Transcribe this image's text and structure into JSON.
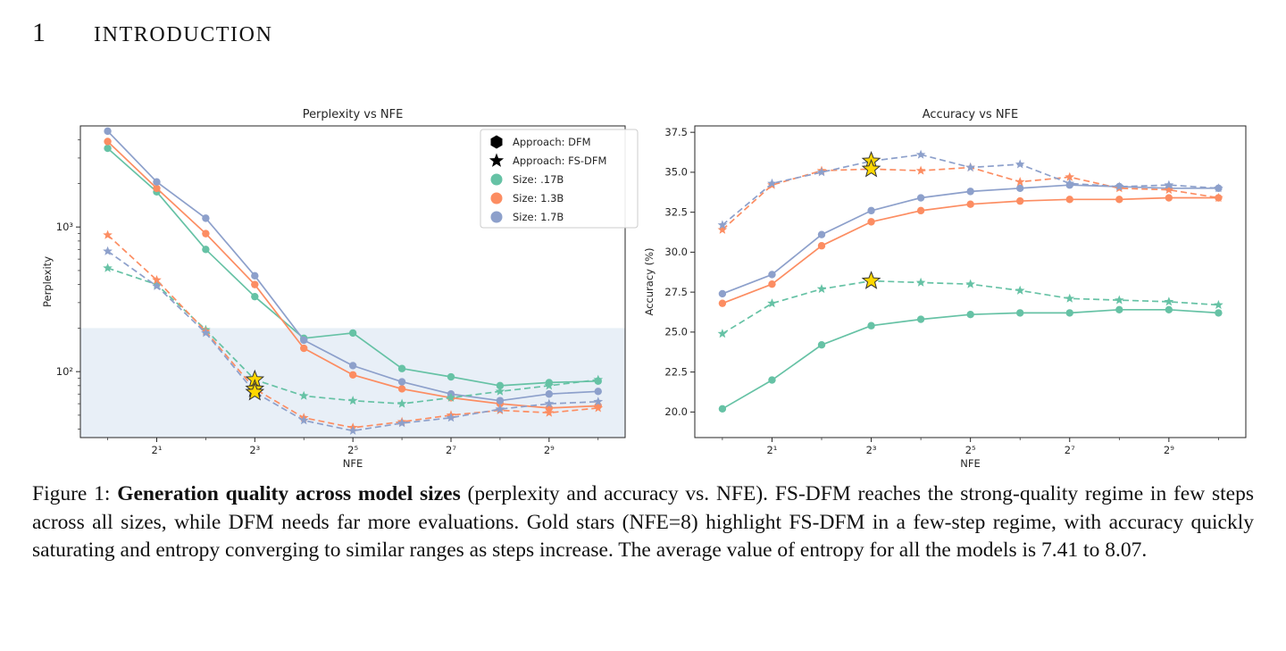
{
  "heading": {
    "number": "1",
    "title": "INTRODUCTION"
  },
  "caption": {
    "label": "Figure 1: ",
    "bold": "Generation quality across model sizes",
    "rest": " (perplexity and accuracy vs. NFE). FS-DFM reaches the strong-quality regime in few steps across all sizes, while DFM needs far more evaluations. Gold stars (NFE=8) highlight FS-DFM in a few-step regime, with accuracy quickly saturating and entropy converging to similar ranges as steps increase. The average value of entropy for all the models is 7.41 to 8.07."
  },
  "colors": {
    "size_017B": "#66c2a5",
    "size_13B": "#fc8d62",
    "size_17B": "#8da0cb",
    "gold_star": "#ffd700",
    "shaded_region": "#dce6f2",
    "ink": "#262626"
  },
  "chart_data": [
    {
      "type": "line",
      "title": "Perplexity vs NFE",
      "xlabel": "NFE",
      "ylabel": "Perplexity",
      "x_scale": "log2",
      "y_scale": "log10",
      "xlim": [
        0.68,
        1500
      ],
      "ylim": [
        35,
        5000
      ],
      "grid": false,
      "x_tick_values": [
        2,
        8,
        32,
        128,
        512
      ],
      "x_tick_labels": [
        "2¹",
        "2³",
        "2⁵",
        "2⁷",
        "2⁹"
      ],
      "x_minor_values": [
        1,
        4,
        16,
        64,
        256,
        1024
      ],
      "y_tick_values": [
        100,
        1000
      ],
      "y_tick_labels": [
        "10²",
        "10³"
      ],
      "x": [
        1,
        2,
        4,
        8,
        16,
        32,
        64,
        128,
        256,
        512,
        1024
      ],
      "series": [
        {
          "name": "DFM .17B",
          "approach": "DFM",
          "size": ".17B",
          "color": "#66c2a5",
          "style": "solid",
          "marker": "circle",
          "values": [
            3500,
            1750,
            700,
            330,
            170,
            185,
            105,
            92,
            80,
            84,
            86
          ]
        },
        {
          "name": "DFM 1.3B",
          "approach": "DFM",
          "size": "1.3B",
          "color": "#fc8d62",
          "style": "solid",
          "marker": "circle",
          "values": [
            3900,
            1850,
            900,
            400,
            145,
            95,
            76,
            66,
            60,
            56,
            58
          ]
        },
        {
          "name": "DFM 1.7B",
          "approach": "DFM",
          "size": "1.7B",
          "color": "#8da0cb",
          "style": "solid",
          "marker": "circle",
          "values": [
            4600,
            2050,
            1150,
            460,
            165,
            110,
            85,
            70,
            63,
            70,
            73
          ]
        },
        {
          "name": "FS-DFM .17B",
          "approach": "FS-DFM",
          "size": ".17B",
          "color": "#66c2a5",
          "style": "dashed",
          "marker": "star",
          "values": [
            520,
            400,
            195,
            88,
            68,
            63,
            60,
            66,
            73,
            80,
            88
          ]
        },
        {
          "name": "FS-DFM 1.3B",
          "approach": "FS-DFM",
          "size": "1.3B",
          "color": "#fc8d62",
          "style": "dashed",
          "marker": "star",
          "values": [
            880,
            430,
            190,
            76,
            48,
            41,
            45,
            50,
            54,
            52,
            56
          ]
        },
        {
          "name": "FS-DFM 1.7B",
          "approach": "FS-DFM",
          "size": "1.7B",
          "color": "#8da0cb",
          "style": "dashed",
          "marker": "star",
          "values": [
            680,
            390,
            185,
            72,
            46,
            39,
            44,
            48,
            55,
            60,
            62
          ]
        }
      ],
      "shaded_region": {
        "y_max": 200,
        "color": "#dce6f2"
      },
      "gold_stars": [
        {
          "x": 8,
          "y": 88
        },
        {
          "x": 8,
          "y": 76
        },
        {
          "x": 8,
          "y": 72
        }
      ],
      "legend": {
        "position": "upper right",
        "items": [
          {
            "marker": "hexagon",
            "color": "#000000",
            "label": "Approach: DFM"
          },
          {
            "marker": "star",
            "color": "#000000",
            "label": "Approach: FS-DFM"
          },
          {
            "marker": "circle",
            "color": "#66c2a5",
            "label": "Size: .17B"
          },
          {
            "marker": "circle",
            "color": "#fc8d62",
            "label": "Size: 1.3B"
          },
          {
            "marker": "circle",
            "color": "#8da0cb",
            "label": "Size: 1.7B"
          }
        ]
      }
    },
    {
      "type": "line",
      "title": "Accuracy vs NFE",
      "xlabel": "NFE",
      "ylabel": "Accuracy (%)",
      "x_scale": "log2",
      "y_scale": "linear",
      "xlim": [
        0.68,
        1500
      ],
      "ylim": [
        18.4,
        37.9
      ],
      "grid": false,
      "x_tick_values": [
        2,
        8,
        32,
        128,
        512
      ],
      "x_tick_labels": [
        "2¹",
        "2³",
        "2⁵",
        "2⁷",
        "2⁹"
      ],
      "x_minor_values": [
        1,
        4,
        16,
        64,
        256,
        1024
      ],
      "y_tick_values": [
        20.0,
        22.5,
        25.0,
        27.5,
        30.0,
        32.5,
        35.0,
        37.5
      ],
      "y_tick_labels": [
        "20.0",
        "22.5",
        "25.0",
        "27.5",
        "30.0",
        "32.5",
        "35.0",
        "37.5"
      ],
      "x": [
        1,
        2,
        4,
        8,
        16,
        32,
        64,
        128,
        256,
        512,
        1024
      ],
      "series": [
        {
          "name": "DFM .17B",
          "approach": "DFM",
          "size": ".17B",
          "color": "#66c2a5",
          "style": "solid",
          "marker": "circle",
          "values": [
            20.2,
            22.0,
            24.2,
            25.4,
            25.8,
            26.1,
            26.2,
            26.2,
            26.4,
            26.4,
            26.2
          ]
        },
        {
          "name": "DFM 1.3B",
          "approach": "DFM",
          "size": "1.3B",
          "color": "#fc8d62",
          "style": "solid",
          "marker": "circle",
          "values": [
            26.8,
            28.0,
            30.4,
            31.9,
            32.6,
            33.0,
            33.2,
            33.3,
            33.3,
            33.4,
            33.4
          ]
        },
        {
          "name": "DFM 1.7B",
          "approach": "DFM",
          "size": "1.7B",
          "color": "#8da0cb",
          "style": "solid",
          "marker": "circle",
          "values": [
            27.4,
            28.6,
            31.1,
            32.6,
            33.4,
            33.8,
            34.0,
            34.2,
            34.1,
            34.0,
            34.0
          ]
        },
        {
          "name": "FS-DFM .17B",
          "approach": "FS-DFM",
          "size": ".17B",
          "color": "#66c2a5",
          "style": "dashed",
          "marker": "star",
          "values": [
            24.9,
            26.8,
            27.7,
            28.2,
            28.1,
            28.0,
            27.6,
            27.1,
            27.0,
            26.9,
            26.7
          ]
        },
        {
          "name": "FS-DFM 1.3B",
          "approach": "FS-DFM",
          "size": "1.3B",
          "color": "#fc8d62",
          "style": "dashed",
          "marker": "star",
          "values": [
            31.4,
            34.2,
            35.1,
            35.2,
            35.1,
            35.3,
            34.4,
            34.7,
            34.0,
            33.9,
            33.4
          ]
        },
        {
          "name": "FS-DFM 1.7B",
          "approach": "FS-DFM",
          "size": "1.7B",
          "color": "#8da0cb",
          "style": "dashed",
          "marker": "star",
          "values": [
            31.7,
            34.3,
            35.0,
            35.7,
            36.1,
            35.3,
            35.5,
            34.3,
            34.1,
            34.2,
            34.0
          ]
        }
      ],
      "gold_stars": [
        {
          "x": 8,
          "y": 35.7
        },
        {
          "x": 8,
          "y": 35.2
        },
        {
          "x": 8,
          "y": 28.2
        }
      ]
    }
  ]
}
